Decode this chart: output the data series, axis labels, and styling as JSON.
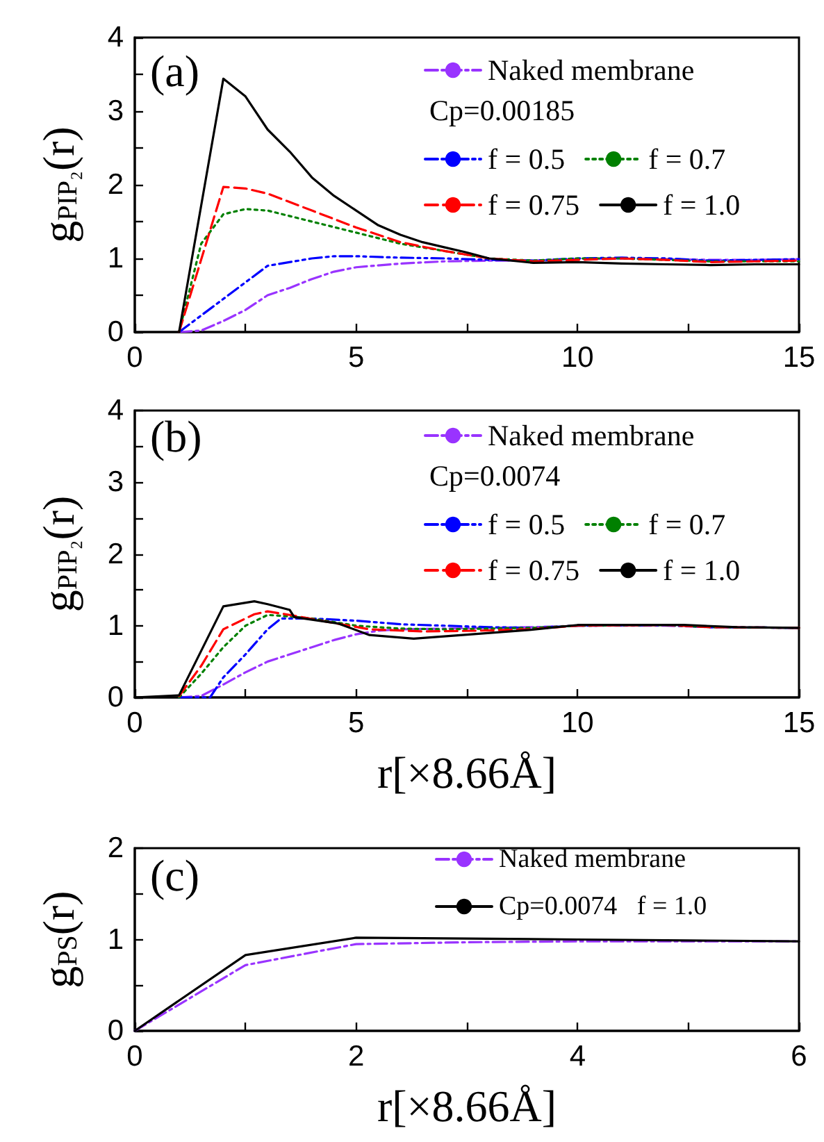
{
  "chart_data": [
    {
      "type": "line",
      "ylabel": "g$_{PIP₂}$(r)",
      "annotations": [
        "(a)",
        "Cp=0.00185"
      ],
      "xlim": [
        0,
        15
      ],
      "ylim": [
        0,
        4
      ],
      "xticks": [
        0,
        {
          "value": 2.5,
          "label": null
        },
        5,
        {
          "value": 7.5,
          "label": null
        },
        10,
        {
          "value": 12.5,
          "label": null
        },
        15
      ],
      "yticks": [
        0,
        {
          "value": 0.5,
          "label": null
        },
        1,
        {
          "value": 1.5,
          "label": null
        },
        2,
        {
          "value": 2.5,
          "label": null
        },
        3,
        {
          "value": 3.5,
          "label": null
        },
        4
      ],
      "grid": false,
      "legend": "top right",
      "marker": "none",
      "series": [
        {
          "name": "Naked membrane",
          "color": "#9933ff",
          "line_style": "dashdot",
          "x": [
            1,
            1.5,
            2,
            2.5,
            3,
            3.5,
            4,
            4.5,
            5,
            6,
            7,
            8,
            9,
            10,
            11,
            12,
            13,
            14,
            15
          ],
          "values": [
            0,
            0.02,
            0.15,
            0.3,
            0.5,
            0.6,
            0.72,
            0.82,
            0.88,
            0.93,
            0.96,
            0.97,
            0.97,
            0.99,
            1.0,
            0.99,
            0.98,
            0.98,
            0.99
          ]
        },
        {
          "name": "f = 0.5",
          "color": "#0000ff",
          "line_style": "dashdotdot",
          "x": [
            1,
            2,
            3,
            4,
            4.5,
            5,
            6,
            7,
            8,
            9,
            10,
            11,
            12,
            13,
            14,
            15
          ],
          "values": [
            0,
            0.45,
            0.9,
            1.0,
            1.03,
            1.03,
            1.01,
            1.0,
            0.98,
            0.97,
            1.0,
            1.01,
            1.0,
            0.97,
            0.98,
            0.99
          ]
        },
        {
          "name": "f = 0.7",
          "color": "#008000",
          "line_style": "dotted",
          "x": [
            1,
            1.5,
            2,
            2.5,
            3,
            4,
            5,
            6,
            7,
            8,
            9,
            10,
            11,
            12,
            13,
            14,
            15
          ],
          "values": [
            0,
            1.2,
            1.6,
            1.67,
            1.65,
            1.5,
            1.35,
            1.2,
            1.1,
            1.0,
            0.97,
            1.0,
            1.0,
            0.98,
            0.96,
            0.96,
            0.96
          ]
        },
        {
          "name": "f = 0.75",
          "color": "#ff0000",
          "line_style": "dashed",
          "x": [
            1,
            2,
            2.5,
            3,
            4,
            5,
            6,
            7,
            8,
            9,
            10,
            11,
            12,
            13,
            14,
            15
          ],
          "values": [
            0,
            1.97,
            1.95,
            1.88,
            1.65,
            1.42,
            1.22,
            1.1,
            1.0,
            0.96,
            0.98,
            1.0,
            0.98,
            0.95,
            0.96,
            0.97
          ]
        },
        {
          "name": "f = 1.0",
          "color": "#000000",
          "line_style": "solid",
          "x": [
            1,
            2,
            2.5,
            3,
            3.5,
            4,
            4.5,
            5,
            5.5,
            6,
            6.5,
            7,
            7.5,
            8,
            9,
            10,
            11,
            12,
            13,
            14,
            15
          ],
          "values": [
            0,
            3.44,
            3.2,
            2.75,
            2.45,
            2.1,
            1.85,
            1.65,
            1.45,
            1.32,
            1.22,
            1.15,
            1.08,
            1.0,
            0.94,
            0.95,
            0.93,
            0.92,
            0.91,
            0.92,
            0.92
          ]
        }
      ]
    },
    {
      "type": "line",
      "xlabel": "r[×8.66Å]",
      "ylabel": "g$_{PIP₂}$(r)",
      "annotations": [
        "(b)",
        "Cp=0.0074"
      ],
      "xlim": [
        0,
        15
      ],
      "ylim": [
        0,
        4
      ],
      "xticks": [
        0,
        {
          "value": 2.5,
          "label": null
        },
        5,
        {
          "value": 7.5,
          "label": null
        },
        10,
        {
          "value": 12.5,
          "label": null
        },
        15
      ],
      "yticks": [
        0,
        {
          "value": 0.5,
          "label": null
        },
        1,
        {
          "value": 1.5,
          "label": null
        },
        2,
        {
          "value": 2.5,
          "label": null
        },
        3,
        {
          "value": 3.5,
          "label": null
        },
        4
      ],
      "grid": false,
      "legend": "top right",
      "marker": "none",
      "series": [
        {
          "name": "Naked membrane",
          "color": "#9933ff",
          "line_style": "dashdot",
          "x": [
            1,
            1.5,
            2,
            2.5,
            3,
            3.5,
            4,
            4.5,
            5,
            5.5,
            6,
            7,
            8,
            9,
            10,
            12,
            13,
            15
          ],
          "values": [
            0,
            0.02,
            0.18,
            0.35,
            0.5,
            0.6,
            0.7,
            0.8,
            0.88,
            0.93,
            0.95,
            0.96,
            0.97,
            0.98,
            1.0,
            1.0,
            0.98,
            0.97
          ]
        },
        {
          "name": "f = 0.5",
          "color": "#0000ff",
          "line_style": "dashdotdot",
          "x": [
            1,
            1.7,
            2,
            2.5,
            3,
            3.3,
            4,
            5,
            6,
            7,
            8,
            9,
            10,
            12,
            13,
            15
          ],
          "values": [
            0,
            0,
            0.28,
            0.6,
            0.95,
            1.1,
            1.1,
            1.07,
            1.02,
            1.0,
            0.98,
            0.97,
            1.0,
            1.01,
            0.98,
            0.97
          ]
        },
        {
          "name": "f = 0.7",
          "color": "#008000",
          "line_style": "dotted",
          "x": [
            1,
            1.5,
            2,
            2.5,
            3,
            3.5,
            4,
            5,
            6,
            7,
            8,
            9,
            10,
            12,
            13,
            15
          ],
          "values": [
            0,
            0.33,
            0.7,
            1.0,
            1.15,
            1.13,
            1.1,
            1.0,
            0.96,
            0.95,
            0.96,
            0.97,
            1.0,
            1.01,
            0.98,
            0.97
          ]
        },
        {
          "name": "f = 0.75",
          "color": "#ff0000",
          "line_style": "dashed",
          "x": [
            1,
            1.5,
            2,
            2.7,
            3,
            3.5,
            4.3,
            5.3,
            6.5,
            7.7,
            8.9,
            10,
            12,
            13,
            15
          ],
          "values": [
            0.02,
            0.44,
            0.95,
            1.16,
            1.2,
            1.15,
            1.06,
            0.95,
            0.92,
            0.93,
            0.95,
            1.0,
            1.01,
            0.98,
            0.97
          ]
        },
        {
          "name": "f = 1.0",
          "color": "#000000",
          "line_style": "solid",
          "x": [
            0,
            1,
            2,
            2.7,
            3,
            3.5,
            3.6,
            4.6,
            5.3,
            6.3,
            7.4,
            8.9,
            10,
            12.4,
            13.6,
            15
          ],
          "values": [
            0,
            0.03,
            1.27,
            1.34,
            1.3,
            1.22,
            1.12,
            1.03,
            0.87,
            0.82,
            0.87,
            0.94,
            1.01,
            1.01,
            0.98,
            0.97
          ]
        }
      ]
    },
    {
      "type": "line",
      "xlabel": "r[×8.66Å]",
      "ylabel": "g$_{PS}$(r)",
      "annotations": [
        "(c)"
      ],
      "xlim": [
        0,
        6
      ],
      "ylim": [
        0,
        2
      ],
      "xticks": [
        0,
        {
          "value": 1,
          "label": null
        },
        2,
        {
          "value": 3,
          "label": null
        },
        4,
        {
          "value": 5,
          "label": null
        },
        6
      ],
      "yticks": [
        0,
        {
          "value": 0.5,
          "label": null
        },
        1,
        {
          "value": 1.5,
          "label": null
        },
        2
      ],
      "grid": false,
      "legend": "top right",
      "marker": "none",
      "series": [
        {
          "name": "Naked membrane",
          "color": "#9933ff",
          "line_style": "dashdot",
          "x": [
            0,
            1,
            2,
            3,
            4,
            5,
            6
          ],
          "values": [
            0,
            0.72,
            0.95,
            0.97,
            0.98,
            0.98,
            0.98
          ]
        },
        {
          "name": "Cp=0.0074   f = 1.0",
          "color": "#000000",
          "line_style": "solid",
          "x": [
            0,
            1,
            2,
            3,
            4,
            5,
            6
          ],
          "values": [
            0,
            0.83,
            1.02,
            1.01,
            1.0,
            0.99,
            0.98
          ]
        }
      ]
    }
  ]
}
